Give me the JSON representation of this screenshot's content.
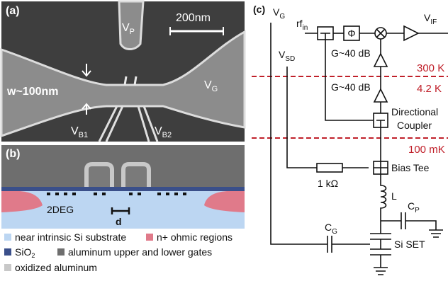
{
  "panel_a": {
    "label": "(a)",
    "scale_bar": "200nm",
    "width_label": "w~100nm",
    "vp": {
      "text": "V",
      "sub": "P"
    },
    "vg": {
      "text": "V",
      "sub": "G"
    },
    "vb1": {
      "text": "V",
      "sub": "B1"
    },
    "vb2": {
      "text": "V",
      "sub": "B2"
    }
  },
  "panel_b": {
    "label": "(b)",
    "twodeg": "2DEG",
    "d": "d",
    "legend": [
      {
        "text": "near intrinsic Si substrate"
      },
      {
        "text": "n+ ohmic regions"
      },
      {
        "text": "SiO",
        "sub": "2"
      },
      {
        "text": "aluminum upper and lower gates"
      },
      {
        "text": "oxidized aluminum"
      }
    ]
  },
  "panel_c": {
    "label": "(c)",
    "vg": {
      "text": "V",
      "sub": "G"
    },
    "rf_in": {
      "text": "rf",
      "sub": "in"
    },
    "phase": "Φ",
    "vif": {
      "text": "V",
      "sub": "IF"
    },
    "gain_1": "G~40 dB",
    "gain_2": "G~40 dB",
    "temp_300k": "300 K",
    "temp_4k": "4.2 K",
    "temp_100mk": "100 mK",
    "vsd": {
      "text": "V",
      "sub": "SD"
    },
    "coupler_1": "Directional",
    "coupler_2": "Coupler",
    "bias_tee": "Bias Tee",
    "resistor": "1 kΩ",
    "inductor": "L",
    "cp": {
      "text": "C",
      "sub": "P"
    },
    "cg": {
      "text": "C",
      "sub": "G"
    },
    "set": "Si SET"
  }
}
